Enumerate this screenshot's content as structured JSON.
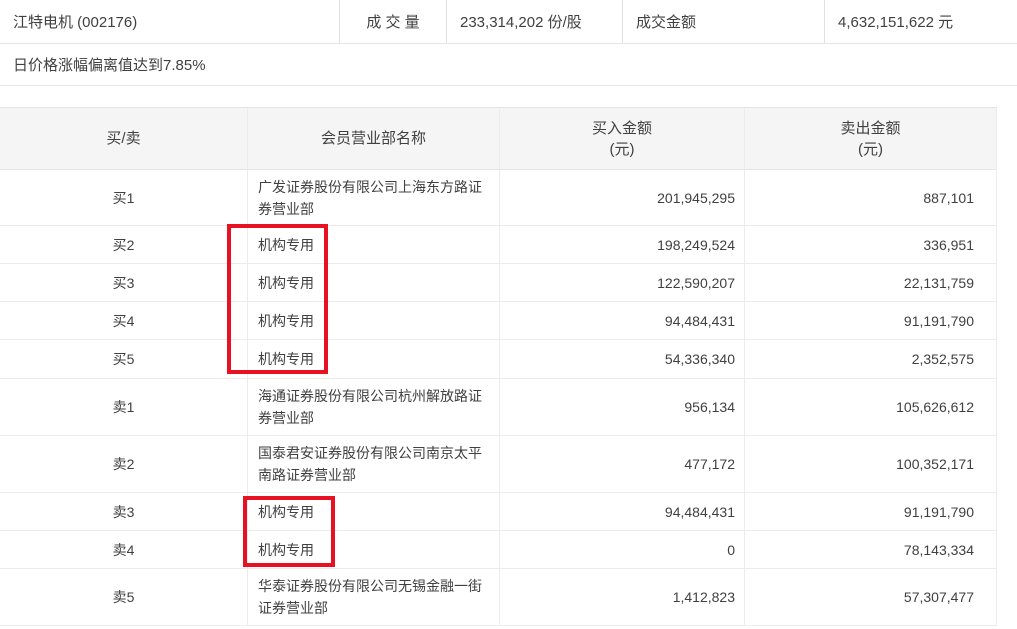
{
  "summary": {
    "stock_name": "江特电机 (002176)",
    "volume_label": "成 交 量",
    "volume_value": "233,314,202 份/股",
    "turnover_label": "成交金额",
    "turnover_value": "4,632,151,622 元",
    "deviation_note": "日价格涨幅偏离值达到7.85%"
  },
  "table": {
    "header": {
      "side": "买/卖",
      "name": "会员营业部名称",
      "buy": {
        "label": "买入金额",
        "unit": "(元)"
      },
      "sell": {
        "label": "卖出金额",
        "unit": "(元)"
      }
    },
    "rows": [
      {
        "side": "买1",
        "name": "广发证券股份有限公司上海东方路证券营业部",
        "buy": "201,945,295",
        "sell": "887,101"
      },
      {
        "side": "买2",
        "name": "机构专用",
        "buy": "198,249,524",
        "sell": "336,951"
      },
      {
        "side": "买3",
        "name": "机构专用",
        "buy": "122,590,207",
        "sell": "22,131,759"
      },
      {
        "side": "买4",
        "name": "机构专用",
        "buy": "94,484,431",
        "sell": "91,191,790"
      },
      {
        "side": "买5",
        "name": "机构专用",
        "buy": "54,336,340",
        "sell": "2,352,575"
      },
      {
        "side": "卖1",
        "name": "海通证券股份有限公司杭州解放路证券营业部",
        "buy": "956,134",
        "sell": "105,626,612"
      },
      {
        "side": "卖2",
        "name": "国泰君安证券股份有限公司南京太平南路证券营业部",
        "buy": "477,172",
        "sell": "100,352,171"
      },
      {
        "side": "卖3",
        "name": "机构专用",
        "buy": "94,484,431",
        "sell": "91,191,790"
      },
      {
        "side": "卖4",
        "name": "机构专用",
        "buy": "0",
        "sell": "78,143,334"
      },
      {
        "side": "卖5",
        "name": "华泰证券股份有限公司无锡金融一街证券营业部",
        "buy": "1,412,823",
        "sell": "57,307,477"
      }
    ]
  },
  "annotations": {
    "box_color": "#e81123",
    "boxes": [
      {
        "covers": "买2-买5 机构专用"
      },
      {
        "covers": "卖3-卖4 机构专用"
      }
    ]
  }
}
